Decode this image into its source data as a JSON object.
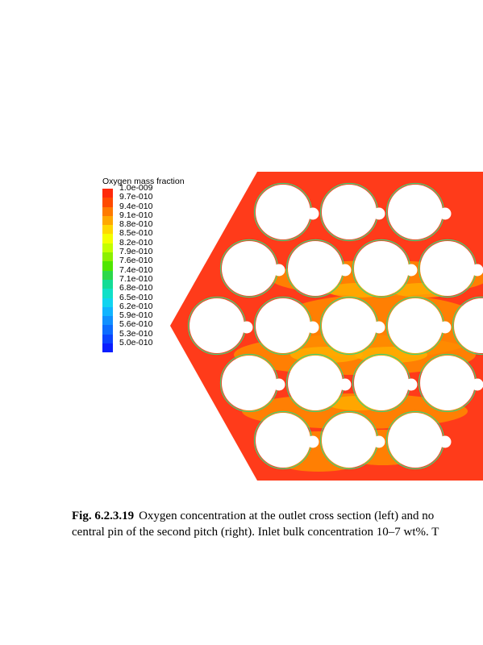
{
  "legend": {
    "title": "Oxygen mass fraction",
    "labels": [
      "1.0e-009",
      "9.7e-010",
      "9.4e-010",
      "9.1e-010",
      "8.8e-010",
      "8.5e-010",
      "8.2e-010",
      "7.9e-010",
      "7.6e-010",
      "7.4e-010",
      "7.1e-010",
      "6.8e-010",
      "6.5e-010",
      "6.2e-010",
      "5.9e-010",
      "5.6e-010",
      "5.3e-010",
      "5.0e-010"
    ],
    "colors": [
      "#ff2a0a",
      "#ff4a00",
      "#ff7a00",
      "#ffa800",
      "#ffd800",
      "#f4ff00",
      "#c4ff00",
      "#8cf000",
      "#50e600",
      "#2cd84a",
      "#14dc96",
      "#10e0c8",
      "#10d4f0",
      "#10b4ff",
      "#1090ff",
      "#0c6cff",
      "#0a44ff",
      "#0a1eff"
    ]
  },
  "colors": {
    "field_base": "#ff3b1a",
    "field_mid": "#ff8c00",
    "field_low": "#ffb000",
    "pin": "#ffffff"
  },
  "caption": {
    "label": "Fig. 6.2.3.19",
    "line1": "Oxygen concentration at the outlet cross section (left) and no",
    "line2": "central pin of the second pitch (right). Inlet bulk concentration 10–7 wt%. T"
  }
}
